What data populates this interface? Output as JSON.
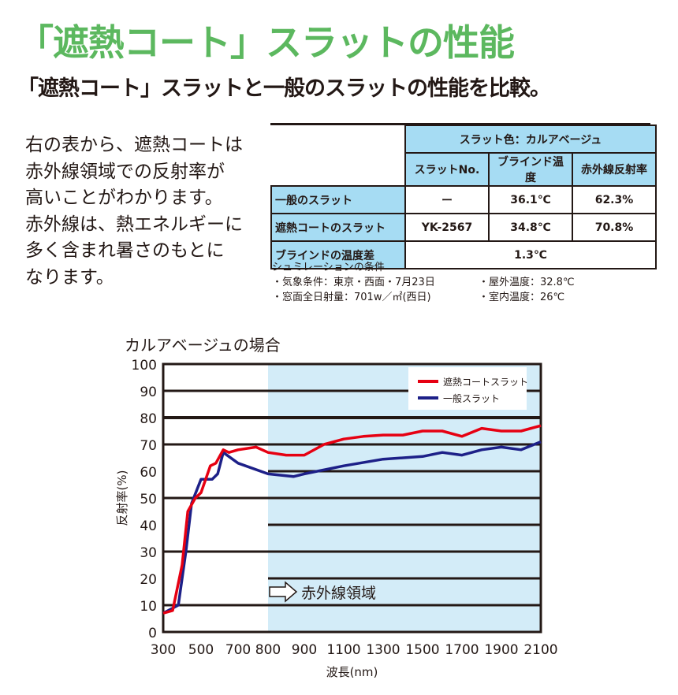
{
  "title": "「遮熱コート」スラットの性能",
  "subtitle": "「遮熱コート」スラットと一般のスラットの性能を比較。",
  "description": [
    "右の表から、遮熱コートは",
    "赤外線領域での反射率が",
    "高いことがわかります。",
    "赤外線は、熱エネルギーに",
    "多く含まれ暑さのもとに",
    "なります。"
  ],
  "table": {
    "group_header": "スラット色：カルアベージュ",
    "columns": [
      "スラットNo.",
      "ブラインド温度",
      "赤外線反射率"
    ],
    "rows": [
      {
        "label": "一般のスラット",
        "values": [
          "ー",
          "36.1℃",
          "62.3%"
        ]
      },
      {
        "label": "遮熱コートのスラット",
        "values": [
          "YK-2567",
          "34.8℃",
          "70.8%"
        ]
      }
    ],
    "diff_label": "ブラインドの温度差",
    "diff_value": "1.3℃"
  },
  "conditions": {
    "title": "シュミレーションの条件",
    "items": [
      "・気象条件：東京・西面・7月23日",
      "・屋外温度：32.8℃",
      "・窓面全日射量：701w／㎡(西日)",
      "・室内温度：26℃"
    ]
  },
  "chart_data": {
    "type": "line",
    "title": "カルアベージュの場合",
    "xlabel": "波長(nm)",
    "ylabel": "反射率(%)",
    "xticks": [
      300,
      500,
      700,
      800,
      900,
      1100,
      1300,
      1500,
      1700,
      1900,
      2100
    ],
    "yticks": [
      0,
      10,
      20,
      30,
      40,
      50,
      60,
      70,
      80,
      90,
      100
    ],
    "xlim": [
      300,
      2100
    ],
    "ylim": [
      0,
      100
    ],
    "grid": true,
    "legend": "top-right",
    "annotation": "赤外線領域",
    "shaded_region": [
      800,
      2100
    ],
    "shade_color": "#d3ecf8",
    "series": [
      {
        "name": "遮熱コートスラット",
        "color": "#e60012",
        "x": [
          300,
          350,
          400,
          430,
          470,
          500,
          550,
          580,
          620,
          650,
          700,
          760,
          800,
          850,
          900,
          1000,
          1100,
          1200,
          1300,
          1400,
          1500,
          1600,
          1700,
          1800,
          1900,
          2000,
          2100
        ],
        "y": [
          7,
          8,
          25,
          45,
          50,
          52,
          62,
          63,
          68,
          67,
          68,
          69,
          67,
          66,
          66,
          70,
          72,
          73,
          73.5,
          73.5,
          75,
          75,
          73,
          76,
          75,
          75,
          77
        ]
      },
      {
        "name": "一般スラット",
        "color": "#1d2088",
        "x": [
          300,
          380,
          420,
          450,
          500,
          560,
          590,
          620,
          700,
          800,
          870,
          900,
          1100,
          1300,
          1500,
          1600,
          1700,
          1800,
          1900,
          2000,
          2100
        ],
        "y": [
          7,
          10,
          30,
          48,
          57,
          57,
          59,
          67,
          63,
          59,
          58,
          59,
          62,
          64.5,
          65.5,
          67,
          66,
          68,
          69,
          68,
          71
        ]
      }
    ]
  }
}
